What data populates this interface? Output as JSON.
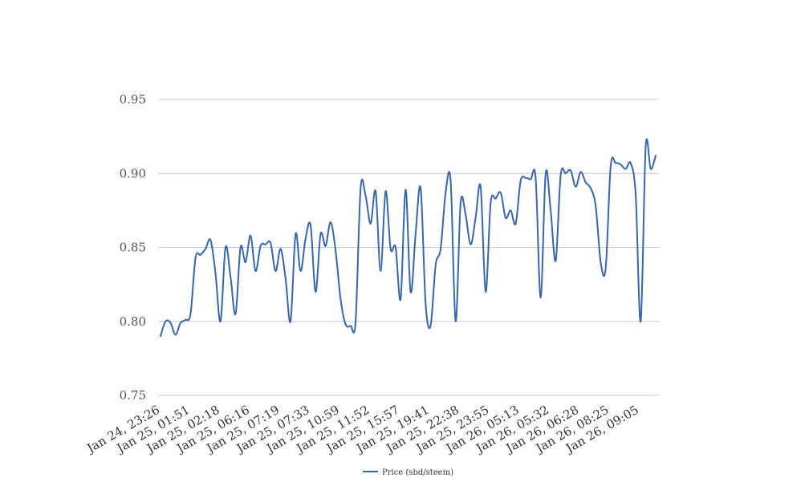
{
  "chart_data": {
    "type": "line",
    "title": "",
    "xlabel": "",
    "ylabel": "",
    "ylim": [
      0.75,
      0.95
    ],
    "yticks": [
      "0.75",
      "0.80",
      "0.85",
      "0.90",
      "0.95"
    ],
    "grid": true,
    "legend_position": "bottom-center",
    "line_color": "#3366bb",
    "x_tick_labels": [
      "Jan 24, 23:26",
      "Jan 25, 01:51",
      "Jan 25, 02:18",
      "Jan 25, 06:16",
      "Jan 25, 07:19",
      "Jan 25, 07:33",
      "Jan 25, 10:59",
      "Jan 25, 11:52",
      "Jan 25, 15:57",
      "Jan 25, 19:41",
      "Jan 25, 22:38",
      "Jan 25, 23:55",
      "Jan 26, 05:13",
      "Jan 26, 05:32",
      "Jan 26, 06:28",
      "Jan 26, 08:25",
      "Jan 26, 09:05"
    ],
    "series": [
      {
        "name": "Price (sbd/steem)",
        "values": [
          0.79,
          0.8,
          0.799,
          0.791,
          0.799,
          0.801,
          0.805,
          0.843,
          0.845,
          0.849,
          0.855,
          0.832,
          0.8,
          0.85,
          0.83,
          0.805,
          0.85,
          0.84,
          0.858,
          0.834,
          0.851,
          0.852,
          0.853,
          0.834,
          0.849,
          0.829,
          0.8,
          0.859,
          0.834,
          0.856,
          0.865,
          0.82,
          0.859,
          0.851,
          0.867,
          0.848,
          0.815,
          0.798,
          0.797,
          0.8,
          0.89,
          0.885,
          0.866,
          0.888,
          0.834,
          0.888,
          0.849,
          0.85,
          0.815,
          0.889,
          0.82,
          0.859,
          0.89,
          0.812,
          0.797,
          0.838,
          0.849,
          0.887,
          0.895,
          0.8,
          0.88,
          0.872,
          0.852,
          0.87,
          0.891,
          0.82,
          0.88,
          0.883,
          0.887,
          0.87,
          0.875,
          0.866,
          0.895,
          0.897,
          0.896,
          0.897,
          0.816,
          0.9,
          0.875,
          0.841,
          0.899,
          0.9,
          0.902,
          0.891,
          0.901,
          0.894,
          0.89,
          0.878,
          0.84,
          0.836,
          0.905,
          0.907,
          0.906,
          0.903,
          0.907,
          0.885,
          0.8,
          0.918,
          0.903,
          0.912
        ]
      }
    ]
  }
}
